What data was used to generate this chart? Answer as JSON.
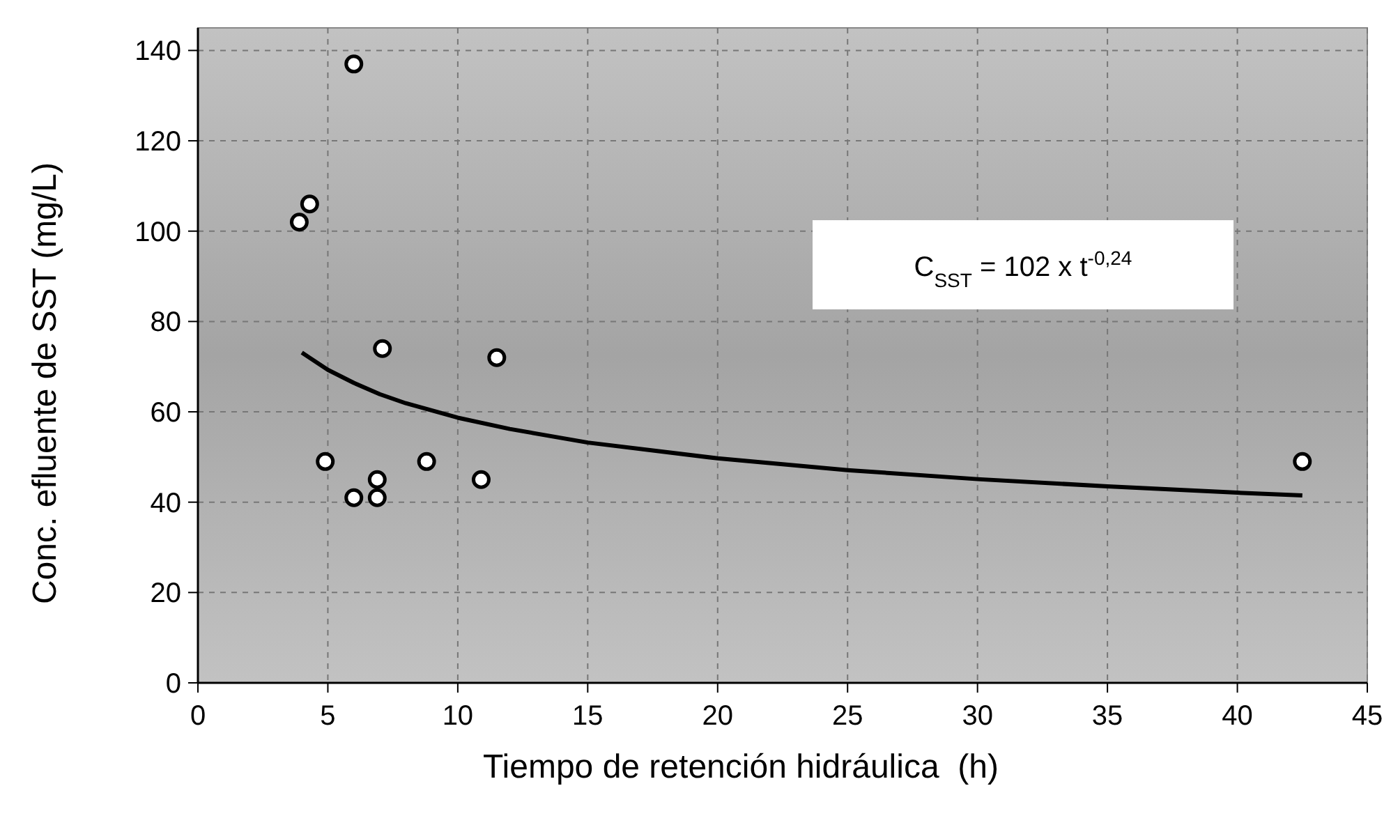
{
  "chart_data": {
    "type": "scatter",
    "xlabel": "Tiempo de retención hidráulica  (h)",
    "ylabel": "Conc. efluente de SST (mg/L)",
    "xlim": [
      0,
      45
    ],
    "ylim": [
      0,
      145
    ],
    "xticks": [
      0,
      5,
      10,
      15,
      20,
      25,
      30,
      35,
      40,
      45
    ],
    "yticks": [
      0,
      20,
      40,
      60,
      80,
      100,
      120,
      140
    ],
    "grid": true,
    "annotations": [
      "C$_{SST}$ = 102 x t$^{-0,24}$"
    ],
    "series": [
      {
        "marker": "circle",
        "color": "#ffffff",
        "x": [
          3.9,
          4.3,
          6.0,
          7.1,
          11.5,
          4.9,
          8.8,
          6.9,
          10.9,
          6.0,
          6.9,
          42.5
        ],
        "values": [
          102,
          106,
          137,
          74,
          72,
          49,
          49,
          45,
          45,
          41,
          41,
          49
        ]
      },
      {
        "type": "line",
        "marker": "none",
        "line_style": "solid",
        "color": "#000000",
        "x": [
          4,
          5,
          6,
          7,
          8,
          10,
          12,
          15,
          20,
          25,
          30,
          35,
          40,
          42.5
        ],
        "values": [
          73.1,
          69.3,
          66.4,
          63.9,
          61.9,
          58.7,
          56.2,
          53.2,
          49.7,
          47.1,
          45.1,
          43.5,
          42.1,
          41.5
        ]
      }
    ]
  }
}
